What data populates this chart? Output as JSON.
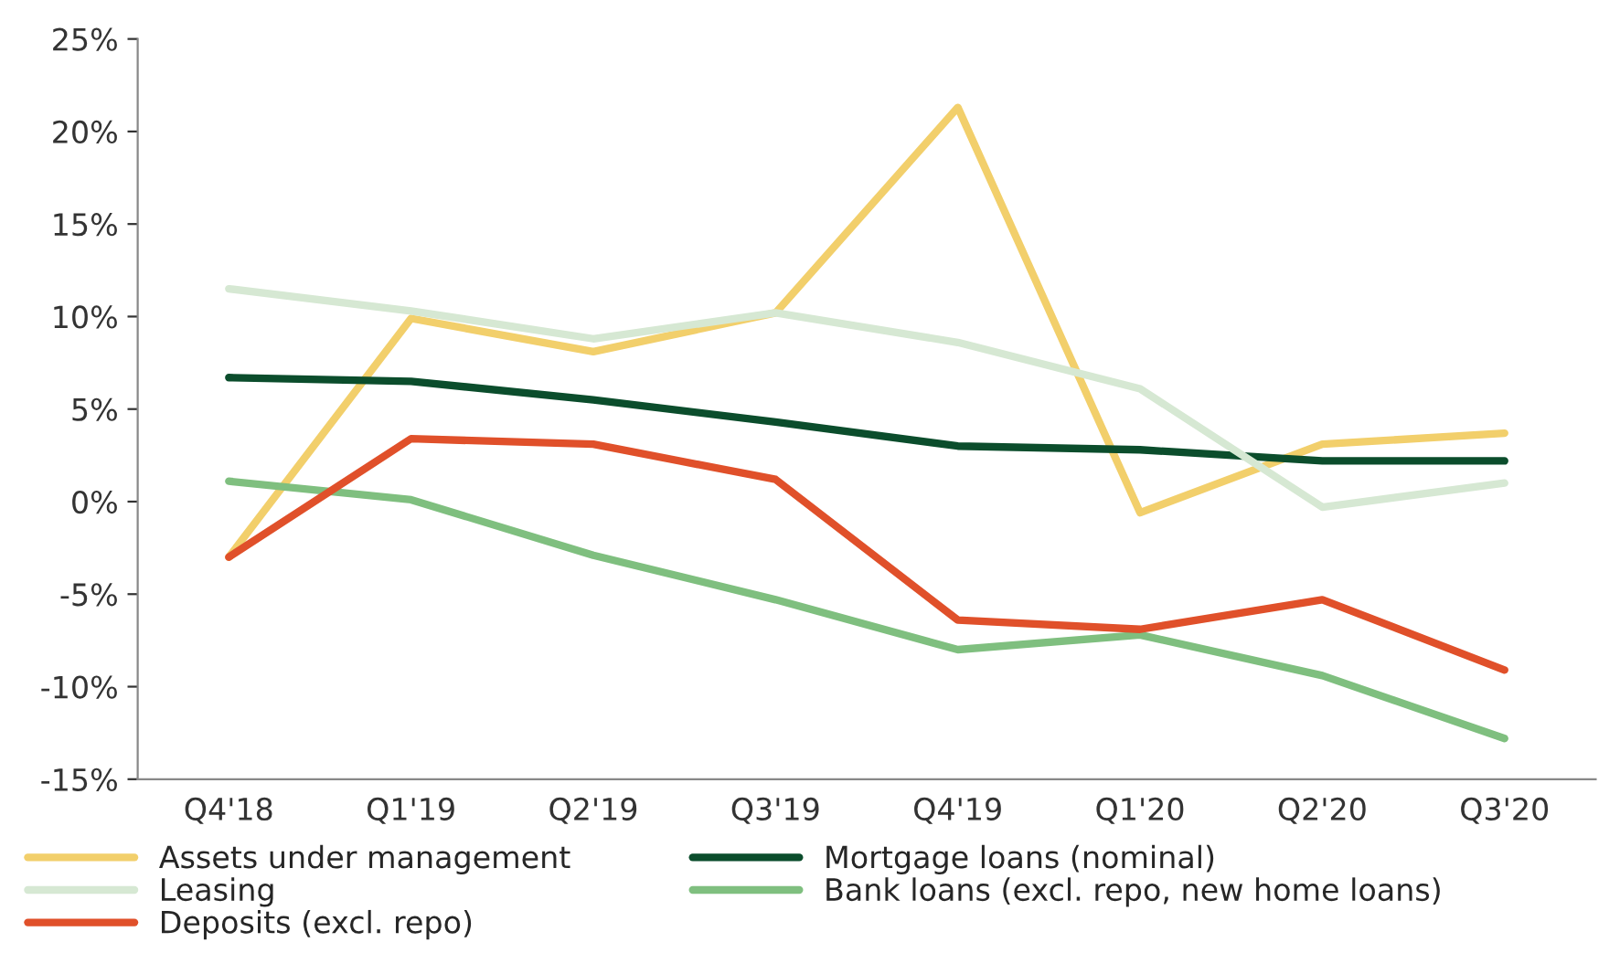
{
  "chart_data": {
    "type": "line",
    "categories": [
      "Q4'18",
      "Q1'19",
      "Q2'19",
      "Q3'19",
      "Q4'19",
      "Q1'20",
      "Q2'20",
      "Q3'20"
    ],
    "series": [
      {
        "name": "Assets under management",
        "color": "#f2cf6b",
        "values": [
          -3.0,
          9.9,
          8.1,
          10.2,
          21.3,
          -0.6,
          3.1,
          3.7
        ]
      },
      {
        "name": "Mortgage loans (nominal)",
        "color": "#0b4d2c",
        "values": [
          6.7,
          6.5,
          5.5,
          4.3,
          3.0,
          2.8,
          2.2,
          2.2
        ]
      },
      {
        "name": "Leasing",
        "color": "#d6e8d3",
        "values": [
          11.5,
          10.3,
          8.8,
          10.2,
          8.6,
          6.1,
          -0.3,
          1.0
        ]
      },
      {
        "name": "Bank loans (excl. repo, new home loans)",
        "color": "#7fbf7f",
        "values": [
          1.1,
          0.1,
          -2.9,
          -5.3,
          -8.0,
          -7.2,
          -9.4,
          -12.8
        ]
      },
      {
        "name": "Deposits (excl. repo)",
        "color": "#e0502a",
        "values": [
          -3.0,
          3.4,
          3.1,
          1.2,
          -6.4,
          -6.9,
          -5.3,
          -9.1
        ]
      }
    ],
    "ylim": [
      -15,
      25
    ],
    "yticks": [
      {
        "value": -15,
        "label": "-15%"
      },
      {
        "value": -10,
        "label": "-10%"
      },
      {
        "value": -5,
        "label": "-5%"
      },
      {
        "value": 0,
        "label": "0%"
      },
      {
        "value": 5,
        "label": "5%"
      },
      {
        "value": 10,
        "label": "10%"
      },
      {
        "value": 15,
        "label": "15%"
      },
      {
        "value": 20,
        "label": "20%"
      },
      {
        "value": 25,
        "label": "25%"
      }
    ],
    "grid": false,
    "legend": "bottom",
    "marker": "none",
    "line_style": "solid"
  }
}
